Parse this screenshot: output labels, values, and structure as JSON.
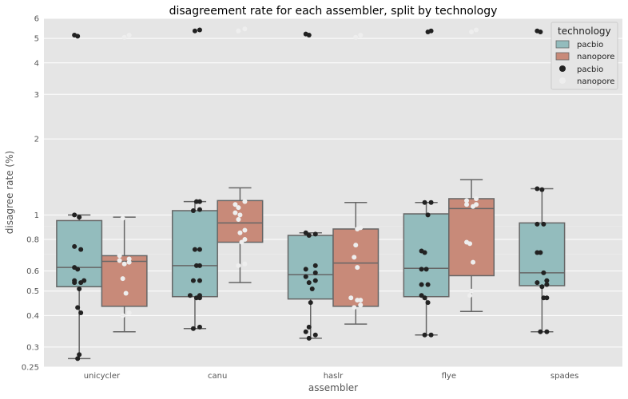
{
  "chart_data": {
    "type": "box",
    "title": "disagreement rate for each assembler, split by technology",
    "xlabel": "assembler",
    "ylabel": "disagree rate (%)",
    "yscale": "log",
    "ylim": [
      0.25,
      6
    ],
    "yticks": [
      0.25,
      0.3,
      0.4,
      0.5,
      0.6,
      0.8,
      1,
      2,
      3,
      4,
      5,
      6
    ],
    "ytick_labels": [
      "0.25",
      "0.3",
      "0.4",
      "0.5",
      "0.6",
      "0.8",
      "1",
      "2",
      "3",
      "4",
      "5",
      "6"
    ],
    "categories": [
      "unicycler",
      "canu",
      "haslr",
      "flye",
      "spades"
    ],
    "grid": true,
    "legend": {
      "title": "technology",
      "position": "top-right",
      "entries": [
        {
          "label": "pacbio",
          "kind": "box",
          "color": "#93bcbd"
        },
        {
          "label": "nanopore",
          "kind": "box",
          "color": "#c88a79"
        },
        {
          "label": "pacbio",
          "kind": "point",
          "color": "#222222"
        },
        {
          "label": "nanopore",
          "kind": "point",
          "color": "#eeeeee"
        }
      ]
    },
    "series": [
      {
        "name": "pacbio",
        "box_color": "#93bcbd",
        "point_color": "#222222",
        "boxes": [
          {
            "q1": 0.52,
            "median": 0.62,
            "q3": 0.95,
            "whisker_low": 0.27,
            "whisker_high": 1.0
          },
          {
            "q1": 0.475,
            "median": 0.63,
            "q3": 1.04,
            "whisker_low": 0.355,
            "whisker_high": 1.13
          },
          {
            "q1": 0.465,
            "median": 0.58,
            "q3": 0.83,
            "whisker_low": 0.325,
            "whisker_high": 0.85
          },
          {
            "q1": 0.475,
            "median": 0.615,
            "q3": 1.01,
            "whisker_low": 0.335,
            "whisker_high": 1.12
          },
          {
            "q1": 0.525,
            "median": 0.59,
            "q3": 0.93,
            "whisker_low": 0.345,
            "whisker_high": 1.27
          }
        ],
        "points": [
          [
            0.27,
            0.28,
            0.41,
            0.43,
            0.51,
            0.54,
            0.54,
            0.55,
            0.55,
            0.61,
            0.62,
            0.73,
            0.75,
            0.98,
            1.0,
            5.1,
            5.15
          ],
          [
            0.355,
            0.36,
            0.47,
            0.47,
            0.48,
            0.48,
            0.55,
            0.55,
            0.63,
            0.63,
            0.73,
            0.73,
            1.04,
            1.05,
            1.13,
            1.13,
            5.35,
            5.4
          ],
          [
            0.325,
            0.335,
            0.345,
            0.36,
            0.45,
            0.51,
            0.54,
            0.55,
            0.57,
            0.59,
            0.61,
            0.63,
            0.83,
            0.84,
            0.85,
            5.15,
            5.2
          ],
          [
            0.335,
            0.335,
            0.45,
            0.47,
            0.48,
            0.53,
            0.53,
            0.61,
            0.61,
            0.71,
            0.72,
            1.0,
            1.12,
            1.12,
            5.3,
            5.35
          ],
          [
            0.345,
            0.345,
            0.47,
            0.47,
            0.52,
            0.53,
            0.54,
            0.55,
            0.59,
            0.71,
            0.71,
            0.92,
            0.92,
            1.26,
            1.27,
            5.3,
            5.35
          ]
        ]
      },
      {
        "name": "nanopore",
        "box_color": "#c88a79",
        "point_color": "#eeeeee",
        "boxes": [
          {
            "q1": 0.435,
            "median": 0.655,
            "q3": 0.69,
            "whisker_low": 0.345,
            "whisker_high": 0.98
          },
          {
            "q1": 0.78,
            "median": 0.93,
            "q3": 1.14,
            "whisker_low": 0.54,
            "whisker_high": 1.28
          },
          {
            "q1": 0.435,
            "median": 0.645,
            "q3": 0.88,
            "whisker_low": 0.37,
            "whisker_high": 1.12
          },
          {
            "q1": 0.575,
            "median": 1.06,
            "q3": 1.16,
            "whisker_low": 0.415,
            "whisker_high": 1.38
          },
          null
        ],
        "points": [
          [
            0.4,
            0.41,
            0.49,
            0.56,
            0.64,
            0.65,
            0.66,
            0.67,
            0.69,
            0.97,
            5.05,
            5.15
          ],
          [
            0.63,
            0.64,
            0.78,
            0.8,
            0.85,
            0.87,
            0.96,
            1.0,
            1.02,
            1.07,
            1.1,
            1.13,
            5.35,
            5.45
          ],
          [
            0.43,
            0.44,
            0.46,
            0.46,
            0.47,
            0.62,
            0.68,
            0.76,
            0.88,
            0.89,
            5.05,
            5.15
          ],
          [
            0.48,
            0.5,
            0.65,
            0.77,
            0.78,
            1.08,
            1.1,
            1.1,
            1.14,
            1.16,
            5.3,
            5.4
          ],
          []
        ]
      }
    ]
  }
}
